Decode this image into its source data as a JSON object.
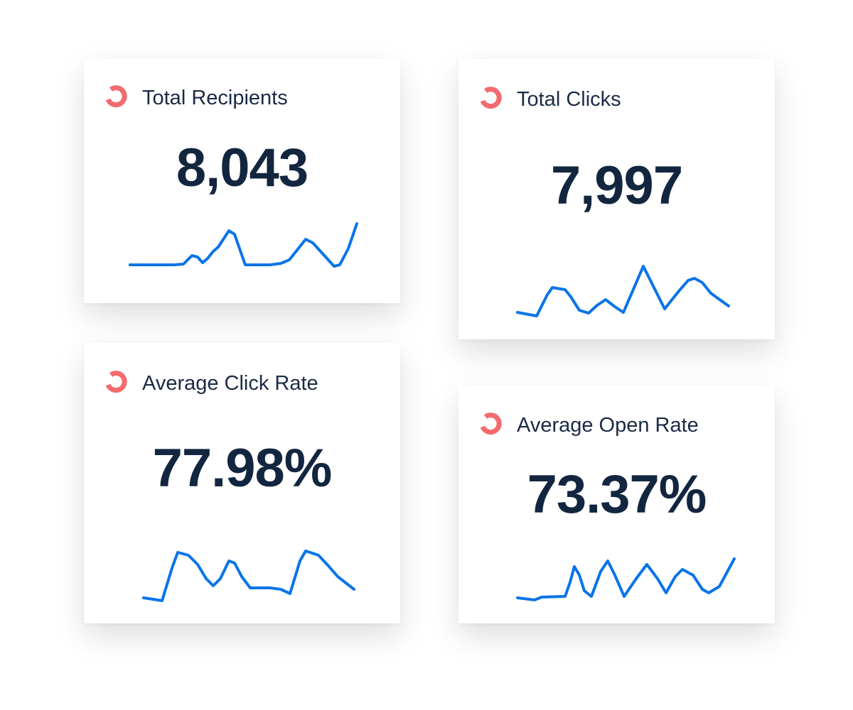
{
  "accent_color": "#f26b6f",
  "line_color": "#0a74e8",
  "cards": [
    {
      "title": "Total Recipients",
      "value": "8,043",
      "icon": "refresh-ring-icon"
    },
    {
      "title": "Total Clicks",
      "value": "7,997",
      "icon": "refresh-ring-icon"
    },
    {
      "title": "Average Click Rate",
      "value": "77.98%",
      "icon": "refresh-ring-icon"
    },
    {
      "title": "Average Open Rate",
      "value": "73.37%",
      "icon": "refresh-ring-icon"
    }
  ]
}
